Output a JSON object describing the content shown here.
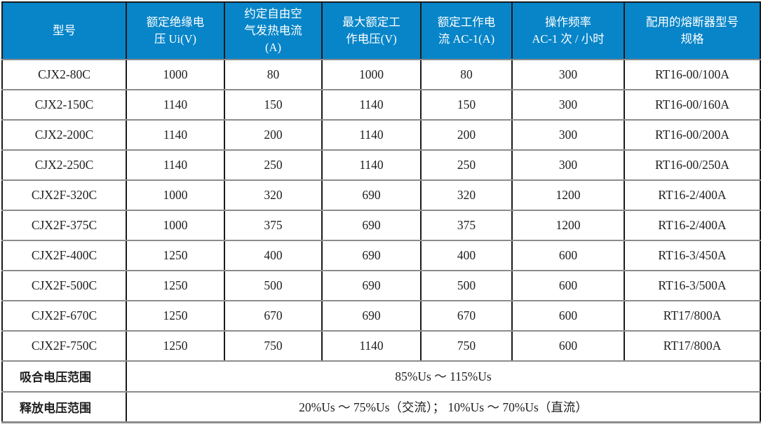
{
  "table": {
    "headers": [
      "型号",
      "额定绝缘电\n压 Ui(V)",
      "约定自由空\n气发热电流\n(A)",
      "最大额定工\n作电压(V)",
      "额定工作电\n流 AC-1(A)",
      "操作频率\nAC-1 次 / 小时",
      "配用的熔断器型号\n规格"
    ],
    "rows": [
      [
        "CJX2-80C",
        "1000",
        "80",
        "1000",
        "80",
        "300",
        "RT16-00/100A"
      ],
      [
        "CJX2-150C",
        "1140",
        "150",
        "1140",
        "150",
        "300",
        "RT16-00/160A"
      ],
      [
        "CJX2-200C",
        "1140",
        "200",
        "1140",
        "200",
        "300",
        "RT16-00/200A"
      ],
      [
        "CJX2-250C",
        "1140",
        "250",
        "1140",
        "250",
        "300",
        "RT16-00/250A"
      ],
      [
        "CJX2F-320C",
        "1000",
        "320",
        "690",
        "320",
        "1200",
        "RT16-2/400A"
      ],
      [
        "CJX2F-375C",
        "1000",
        "375",
        "690",
        "375",
        "1200",
        "RT16-2/400A"
      ],
      [
        "CJX2F-400C",
        "1250",
        "400",
        "690",
        "400",
        "600",
        "RT16-3/450A"
      ],
      [
        "CJX2F-500C",
        "1250",
        "500",
        "690",
        "500",
        "600",
        "RT16-3/500A"
      ],
      [
        "CJX2F-670C",
        "1250",
        "670",
        "690",
        "670",
        "600",
        "RT17/800A"
      ],
      [
        "CJX2F-750C",
        "1250",
        "750",
        "1140",
        "750",
        "600",
        "RT17/800A"
      ]
    ],
    "footer_rows": [
      {
        "label": "吸合电压范围",
        "value": "85%Us ～ 115%Us"
      },
      {
        "label": "释放电压范围",
        "value": "20%Us ～ 75%Us（交流）； 10%Us ～ 70%Us（直流）"
      }
    ]
  },
  "colors": {
    "header_bg": "#0785C8",
    "header_text": "#FFFFFF",
    "body_text": "#1F1F1F",
    "border_dark": "#1A1A1A",
    "border_gray": "#8C8C8C"
  }
}
